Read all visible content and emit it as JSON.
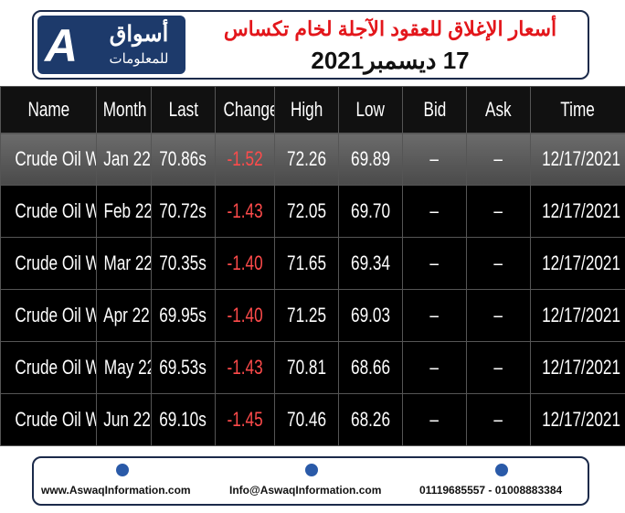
{
  "header": {
    "logo_title": "أسواق",
    "logo_subtitle": "للمعلومات",
    "logo_letter": "A",
    "title": "أسعار الإغلاق للعقود الآجلة لخام تكساس",
    "date": "17 ديسمبر2021"
  },
  "table": {
    "columns": [
      "Name",
      "Month",
      "Last",
      "Change",
      "High",
      "Low",
      "Bid",
      "Ask",
      "Time"
    ],
    "rows": [
      [
        "Crude Oil WTI",
        "Jan 22",
        "70.86s",
        "-1.52",
        "72.26",
        "69.89",
        "–",
        "–",
        "12/17/2021"
      ],
      [
        "Crude Oil WTI",
        "Feb 22",
        "70.72s",
        "-1.43",
        "72.05",
        "69.70",
        "–",
        "–",
        "12/17/2021"
      ],
      [
        "Crude Oil WTI",
        "Mar 22",
        "70.35s",
        "-1.40",
        "71.65",
        "69.34",
        "–",
        "–",
        "12/17/2021"
      ],
      [
        "Crude Oil WTI",
        "Apr 22",
        "69.95s",
        "-1.40",
        "71.25",
        "69.03",
        "–",
        "–",
        "12/17/2021"
      ],
      [
        "Crude Oil WTI",
        "May 22",
        "69.53s",
        "-1.43",
        "70.81",
        "68.66",
        "–",
        "–",
        "12/17/2021"
      ],
      [
        "Crude Oil WTI",
        "Jun 22",
        "69.10s",
        "-1.45",
        "70.46",
        "68.26",
        "–",
        "–",
        "12/17/2021"
      ]
    ]
  },
  "footer": {
    "website": "www.AswaqInformation.com",
    "email": "Info@AswaqInformation.com",
    "phones": "01119685557 - 01008883384"
  }
}
